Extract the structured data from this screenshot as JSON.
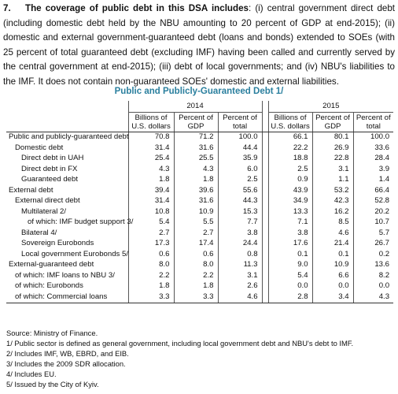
{
  "paragraph": {
    "number": "7.",
    "lead": "The coverage of public debt in this DSA includes",
    "text": ": (i) central government direct debt (including domestic debt held by the NBU amounting to 20 percent of GDP at end-2015); (ii) domestic and external government-guaranteed debt (loans and bonds) extended to SOEs (with 25 percent of total guaranteed debt (excluding IMF) having been called and currently served by the central government at end-2015); (iii) debt of local governments; and (iv) NBU's liabilities to the IMF. It does not contain non-guaranteed SOEs' domestic and external liabilities."
  },
  "table": {
    "title": "Public and Publicly-Guaranteed Debt 1/",
    "years": [
      "2014",
      "2015"
    ],
    "columns": [
      "Billions of U.S. dollars",
      "Percent of GDP",
      "Percent of total",
      "Billions of U.S. dollars",
      "Percent of GDP",
      "Percent of total"
    ],
    "rows": [
      [
        "Public and publicly-guaranteed debt",
        "70.8",
        "71.2",
        "100.0",
        "66.1",
        "80.1",
        "100.0"
      ],
      [
        "Domestic debt",
        "31.4",
        "31.6",
        "44.4",
        "22.2",
        "26.9",
        "33.6"
      ],
      [
        "Direct debt in UAH",
        "25.4",
        "25.5",
        "35.9",
        "18.8",
        "22.8",
        "28.4"
      ],
      [
        "Direct debt in FX",
        "4.3",
        "4.3",
        "6.0",
        "2.5",
        "3.1",
        "3.9"
      ],
      [
        "Guaranteed debt",
        "1.8",
        "1.8",
        "2.5",
        "0.9",
        "1.1",
        "1.4"
      ],
      [
        "External debt",
        "39.4",
        "39.6",
        "55.6",
        "43.9",
        "53.2",
        "66.4"
      ],
      [
        "External direct debt",
        "31.4",
        "31.6",
        "44.3",
        "34.9",
        "42.3",
        "52.8"
      ],
      [
        "Multilateral 2/",
        "10.8",
        "10.9",
        "15.3",
        "13.3",
        "16.2",
        "20.2"
      ],
      [
        "of which: IMF budget support 3/",
        "5.4",
        "5.5",
        "7.7",
        "7.1",
        "8.5",
        "10.7"
      ],
      [
        "Bilateral 4/",
        "2.7",
        "2.7",
        "3.8",
        "3.8",
        "4.6",
        "5.7"
      ],
      [
        "Sovereign Eurobonds",
        "17.3",
        "17.4",
        "24.4",
        "17.6",
        "21.4",
        "26.7"
      ],
      [
        "Local government Eurobonds 5/",
        "0.6",
        "0.6",
        "0.8",
        "0.1",
        "0.1",
        "0.2"
      ],
      [
        "External-guaranteed debt",
        "8.0",
        "8.0",
        "11.3",
        "9.0",
        "10.9",
        "13.6"
      ],
      [
        "of which: IMF loans to NBU 3/",
        "2.2",
        "2.2",
        "3.1",
        "5.4",
        "6.6",
        "8.2"
      ],
      [
        "of which: Eurobonds",
        "1.8",
        "1.8",
        "2.6",
        "0.0",
        "0.0",
        "0.0"
      ],
      [
        "of which: Commercial loans",
        "3.3",
        "3.3",
        "4.6",
        "2.8",
        "3.4",
        "4.3"
      ]
    ]
  },
  "footnotes": [
    "Source: Ministry of Finance.",
    "1/ Public sector is defined as general government, including local government debt and NBU's debt to IMF.",
    "2/ Includes IMF, WB, EBRD, and EIB.",
    "3/ Includes the 2009 SDR allocation.",
    "4/ Includes EU.",
    "5/ Issued by the City of Kyiv."
  ]
}
